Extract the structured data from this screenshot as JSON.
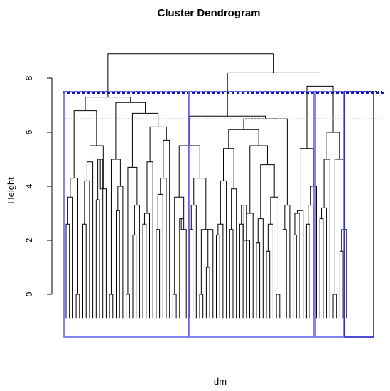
{
  "chart_data": {
    "type": "dendrogram",
    "title": "Cluster Dendrogram",
    "xlabel": "dm",
    "ylabel": "Height",
    "ylim": [
      -1.2,
      9.2
    ],
    "yticks": [
      0,
      2,
      4,
      6,
      8
    ],
    "root_height": 8.9,
    "top_merges": [
      {
        "height": 8.9,
        "joins": "all clusters"
      },
      {
        "height": 8.2,
        "joins": "clusters 2-4"
      },
      {
        "height": 7.7,
        "joins": "clusters 3-4"
      },
      {
        "height": 7.3,
        "joins": "cluster 1 halves"
      },
      {
        "height": 6.6,
        "joins": "cluster 2 halves"
      }
    ],
    "cut_lines": [
      {
        "height": 7.5,
        "style": "dotted",
        "color": "#000000"
      },
      {
        "height": 7.45,
        "style": "dashed",
        "color": "#0000cc"
      },
      {
        "height": 6.5,
        "style": "dotted",
        "color": "#aaaaaa"
      }
    ],
    "cluster_boxes": [
      {
        "id": 1,
        "color": "#6666ee"
      },
      {
        "id": 2,
        "color": "#6666ee"
      },
      {
        "id": 3,
        "color": "#6666ee"
      },
      {
        "id": 4,
        "color": "#2222cc"
      }
    ]
  }
}
